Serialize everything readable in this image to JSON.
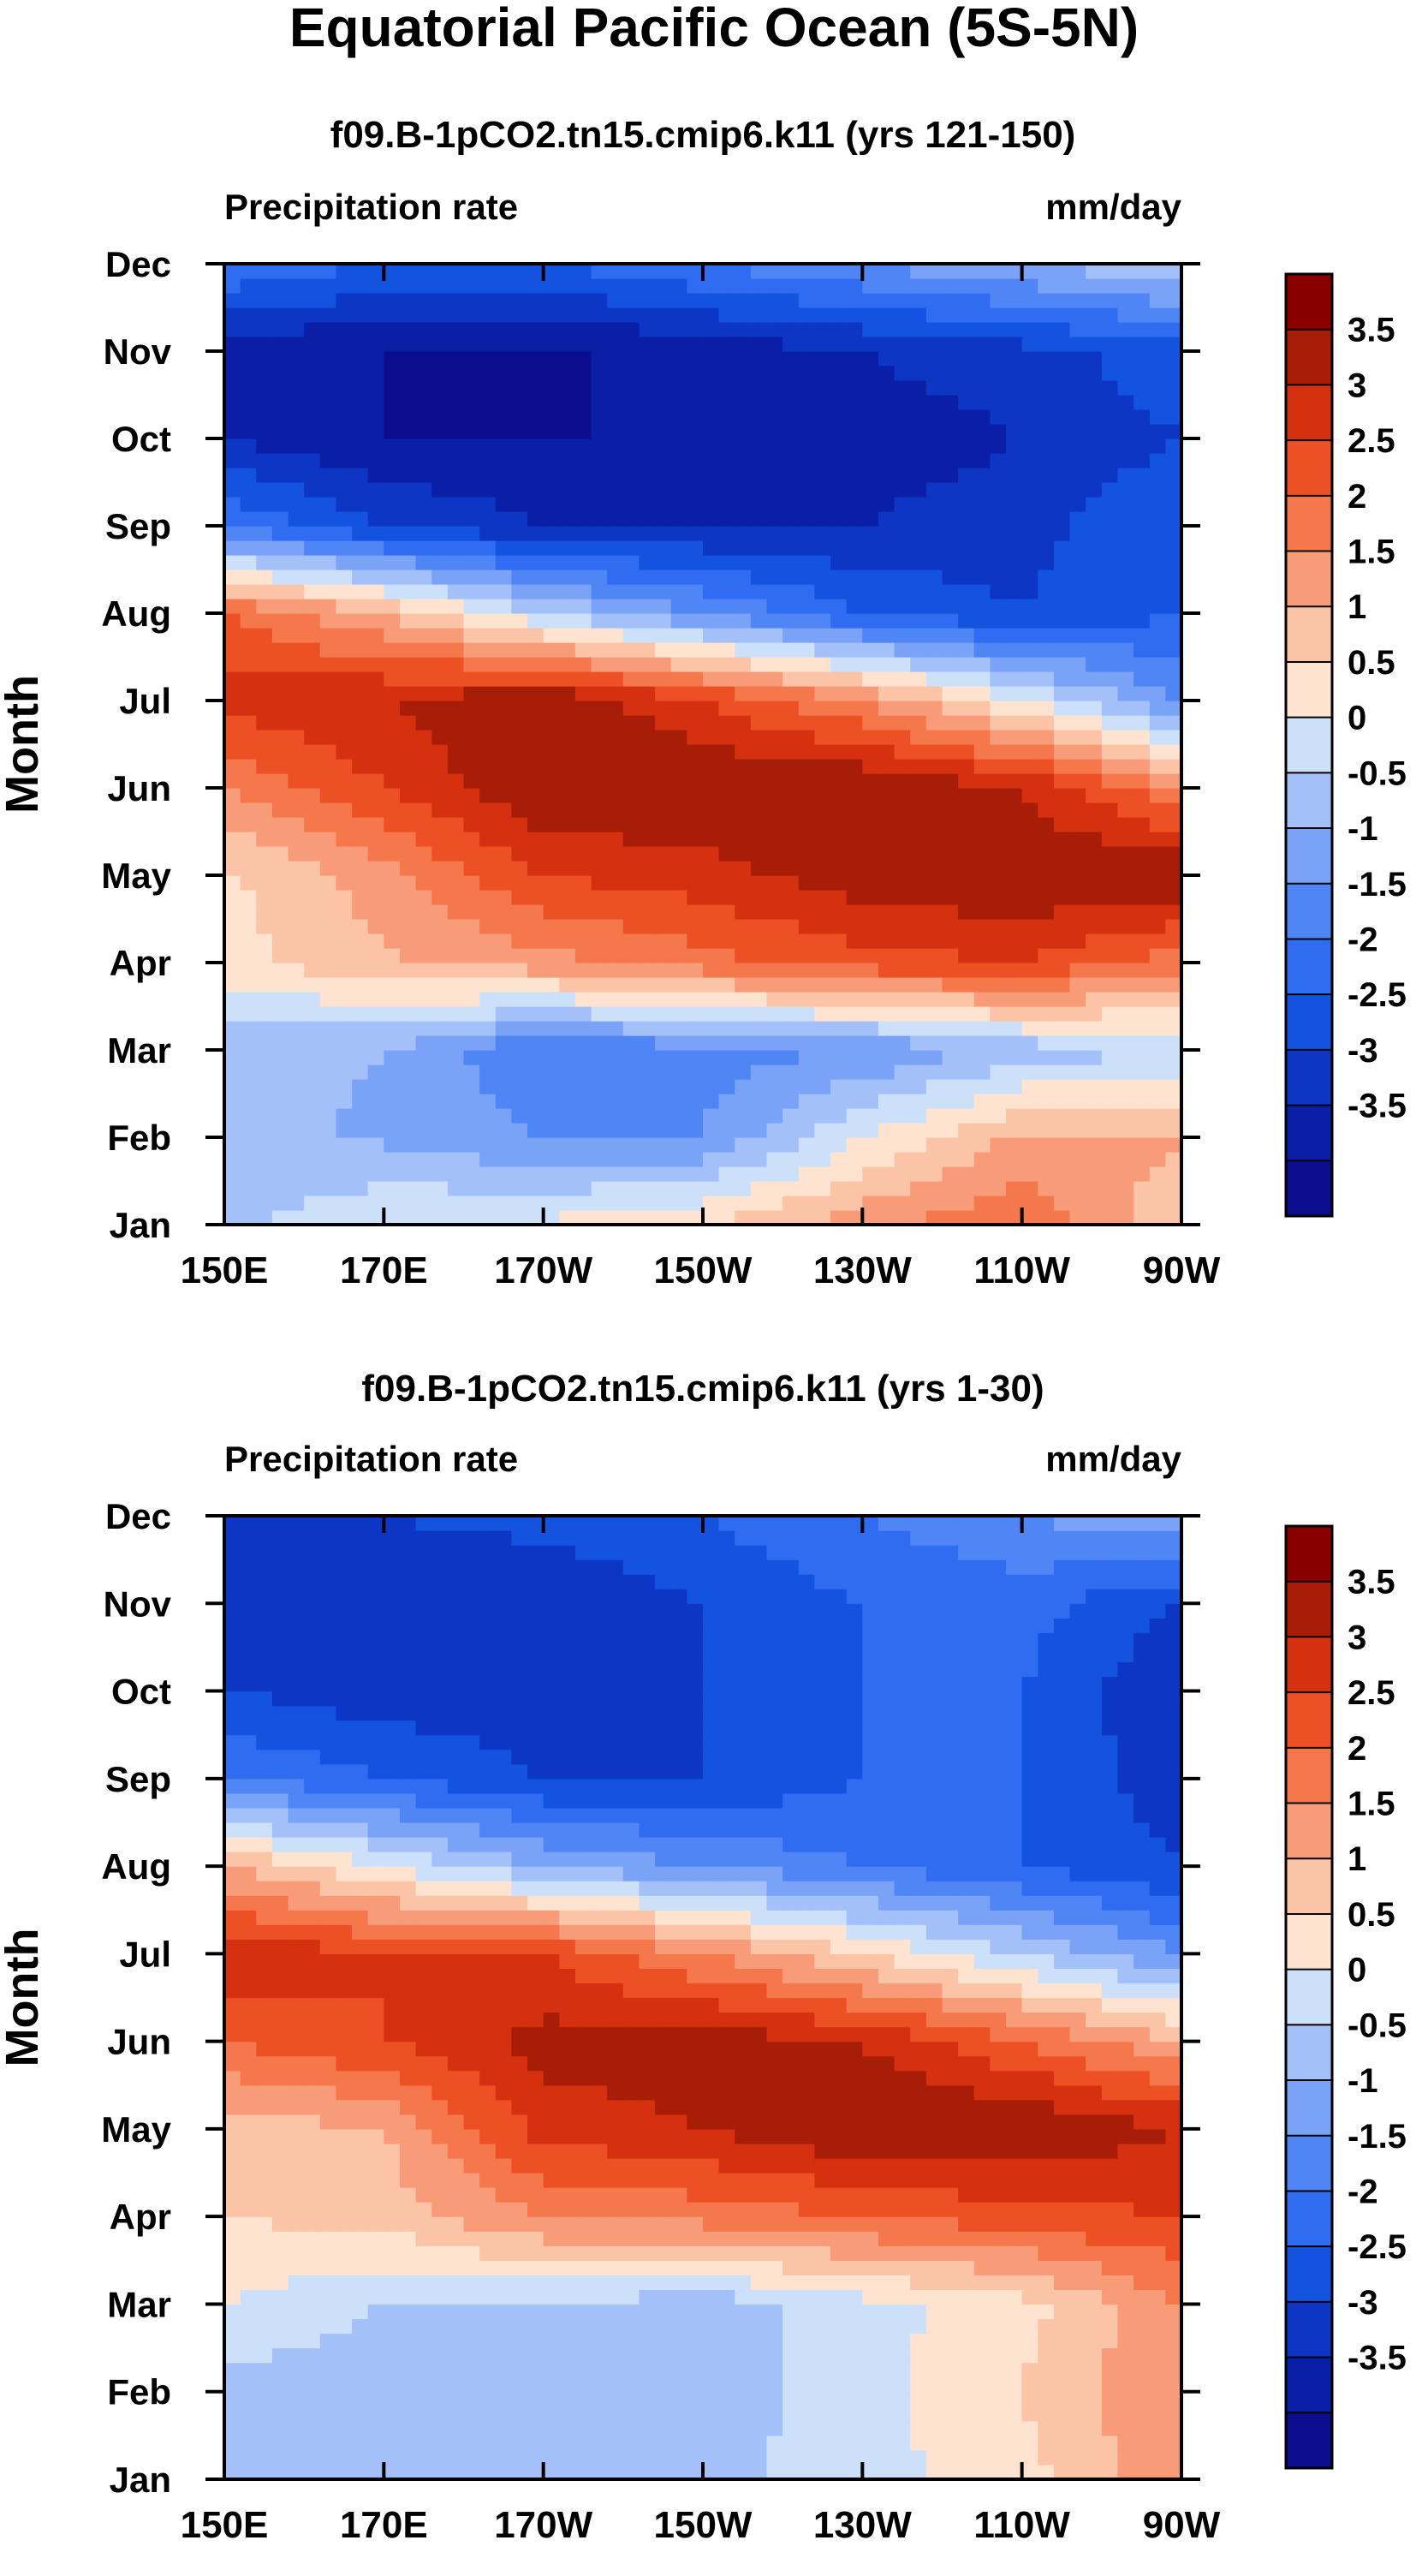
{
  "figure": {
    "title": "Equatorial Pacific Ocean (5S-5N)"
  },
  "chart_data": [
    {
      "type": "heatmap",
      "subtitle": "f09.B-1pCO2.tn15.cmip6.k11 (yrs 121-150)",
      "left_label": "Precipitation rate",
      "right_label": "mm/day",
      "ylabel": "Month",
      "x_ticks": [
        "150E",
        "170E",
        "170W",
        "150W",
        "130W",
        "110W",
        "90W"
      ],
      "x_range": [
        150,
        270
      ],
      "y_ticks": [
        "Jan",
        "Feb",
        "Mar",
        "Apr",
        "May",
        "Jun",
        "Jul",
        "Aug",
        "Sep",
        "Oct",
        "Nov",
        "Dec"
      ],
      "colorbar_labels": [
        "3.5",
        "3",
        "2.5",
        "2",
        "1.5",
        "1",
        "0.5",
        "0",
        "-0.5",
        "-1",
        "-1.5",
        "-2",
        "-2.5",
        "-3",
        "-3.5"
      ],
      "levels": [
        -3.5,
        -3,
        -2.5,
        -2,
        -1.5,
        -1,
        -0.5,
        0,
        0.5,
        1,
        1.5,
        2,
        2.5,
        3,
        3.5
      ],
      "grid_lon": [
        150,
        170,
        190,
        210,
        230,
        250,
        270
      ],
      "grid_month": [
        "Jan",
        "Feb",
        "Mar",
        "Apr",
        "May",
        "Jun",
        "Jul",
        "Aug",
        "Sep",
        "Oct",
        "Nov",
        "Dec"
      ],
      "values": [
        [
          -0.2,
          0.5,
          0.6,
          1.0,
          1.8,
          2.5,
          1.0
        ],
        [
          -0.3,
          -0.6,
          -1.0,
          -1.0,
          0.5,
          1.6,
          1.6
        ],
        [
          -0.3,
          -0.5,
          -1.5,
          -1.2,
          -1.0,
          -0.3,
          0.0
        ],
        [
          0.8,
          1.4,
          1.8,
          2.3,
          2.8,
          3.0,
          2.2
        ],
        [
          0.9,
          1.8,
          3.0,
          3.3,
          3.8,
          4.0,
          4.0
        ],
        [
          2.0,
          3.0,
          4.0,
          4.0,
          4.0,
          3.5,
          2.0
        ],
        [
          3.2,
          3.5,
          4.0,
          3.0,
          2.0,
          0.5,
          -1.0
        ],
        [
          2.5,
          1.5,
          0.0,
          -1.0,
          -2.0,
          -2.5,
          -2.0
        ],
        [
          -1.5,
          -2.5,
          -3.0,
          -3.0,
          -3.0,
          -2.7,
          -2.0
        ],
        [
          -3.0,
          -3.5,
          -3.5,
          -3.5,
          -3.3,
          -3.0,
          -2.5
        ],
        [
          -3.3,
          -3.5,
          -3.6,
          -3.3,
          -3.0,
          -2.7,
          -2.2
        ],
        [
          -1.5,
          -2.0,
          -2.0,
          -1.5,
          -1.0,
          -0.5,
          0.0
        ]
      ]
    },
    {
      "type": "heatmap",
      "subtitle": "f09.B-1pCO2.tn15.cmip6.k11 (yrs 1-30)",
      "left_label": "Precipitation rate",
      "right_label": "mm/day",
      "ylabel": "Month",
      "x_ticks": [
        "150E",
        "170E",
        "170W",
        "150W",
        "130W",
        "110W",
        "90W"
      ],
      "x_range": [
        150,
        270
      ],
      "y_ticks": [
        "Jan",
        "Feb",
        "Mar",
        "Apr",
        "May",
        "Jun",
        "Jul",
        "Aug",
        "Sep",
        "Oct",
        "Nov",
        "Dec"
      ],
      "colorbar_labels": [
        "3.5",
        "3",
        "2.5",
        "2",
        "1.5",
        "1",
        "0.5",
        "0",
        "-0.5",
        "-1",
        "-1.5",
        "-2",
        "-2.5",
        "-3",
        "-3.5"
      ],
      "levels": [
        -3.5,
        -3,
        -2.5,
        -2,
        -1.5,
        -1,
        -0.5,
        0,
        0.5,
        1,
        1.5,
        2,
        2.5,
        3,
        3.5
      ],
      "grid_lon": [
        150,
        170,
        190,
        210,
        230,
        250,
        270
      ],
      "grid_month": [
        "Jan",
        "Feb",
        "Mar",
        "Apr",
        "May",
        "Jun",
        "Jul",
        "Aug",
        "Sep",
        "Oct",
        "Nov",
        "Dec"
      ],
      "values": [
        [
          -0.5,
          -0.3,
          -0.3,
          -0.2,
          0.3,
          0.8,
          2.0
        ],
        [
          -0.2,
          -0.4,
          -0.4,
          -0.3,
          0.3,
          1.0,
          2.0
        ],
        [
          0.5,
          0.0,
          0.0,
          -0.3,
          0.3,
          0.8,
          2.0
        ],
        [
          1.0,
          1.2,
          2.0,
          2.2,
          2.5,
          2.8,
          3.0
        ],
        [
          1.2,
          1.5,
          3.2,
          3.5,
          4.0,
          4.0,
          3.5
        ],
        [
          2.5,
          3.0,
          3.7,
          3.8,
          3.5,
          2.5,
          1.5
        ],
        [
          3.5,
          3.0,
          3.0,
          2.0,
          1.0,
          0.0,
          -1.0
        ],
        [
          1.5,
          0.5,
          -0.5,
          -1.0,
          -1.5,
          -2.0,
          -2.5
        ],
        [
          -1.5,
          -2.0,
          -2.5,
          -2.5,
          -2.0,
          -2.0,
          -2.8
        ],
        [
          -2.5,
          -2.8,
          -2.8,
          -2.5,
          -2.0,
          -2.0,
          -3.0
        ],
        [
          -3.0,
          -3.0,
          -3.0,
          -2.5,
          -2.0,
          -1.8,
          -2.5
        ],
        [
          -2.5,
          -2.5,
          -2.3,
          -2.0,
          -1.5,
          -1.0,
          -0.5
        ]
      ]
    }
  ],
  "colors": {
    "palette": [
      "#0c0c8f",
      "#0a1ea6",
      "#0d36c4",
      "#1452e0",
      "#2f6cf2",
      "#4f85f5",
      "#7aa2f7",
      "#a3c0f9",
      "#cde0fa",
      "#fde3d0",
      "#fbc4a6",
      "#f89b78",
      "#f5774c",
      "#ee5026",
      "#d5300f",
      "#a81d07",
      "#8a0000"
    ],
    "axis": "#000000"
  }
}
